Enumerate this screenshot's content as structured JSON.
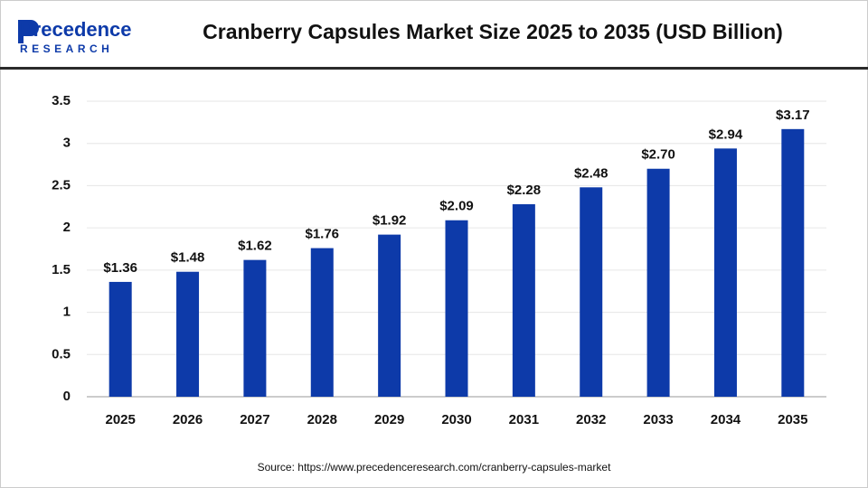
{
  "logo": {
    "name": "Precedence",
    "tagline": "RESEARCH"
  },
  "source": "Source: https://www.precedenceresearch.com/cranberry-capsules-market",
  "chart_data": {
    "type": "bar",
    "title": "Cranberry Capsules Market Size 2025 to 2035 (USD Billion)",
    "categories": [
      "2025",
      "2026",
      "2027",
      "2028",
      "2029",
      "2030",
      "2031",
      "2032",
      "2033",
      "2034",
      "2035"
    ],
    "values": [
      1.36,
      1.48,
      1.62,
      1.76,
      1.92,
      2.09,
      2.28,
      2.48,
      2.7,
      2.94,
      3.17
    ],
    "value_labels": [
      "$1.36",
      "$1.48",
      "$1.62",
      "$1.76",
      "$1.92",
      "$2.09",
      "$2.28",
      "$2.48",
      "$2.70",
      "$2.94",
      "$3.17"
    ],
    "color": "#0d3aa9",
    "ylim": [
      0,
      3.5
    ],
    "yticks": [
      0,
      0.5,
      1,
      1.5,
      2,
      2.5,
      3,
      3.5
    ],
    "grid": true
  }
}
